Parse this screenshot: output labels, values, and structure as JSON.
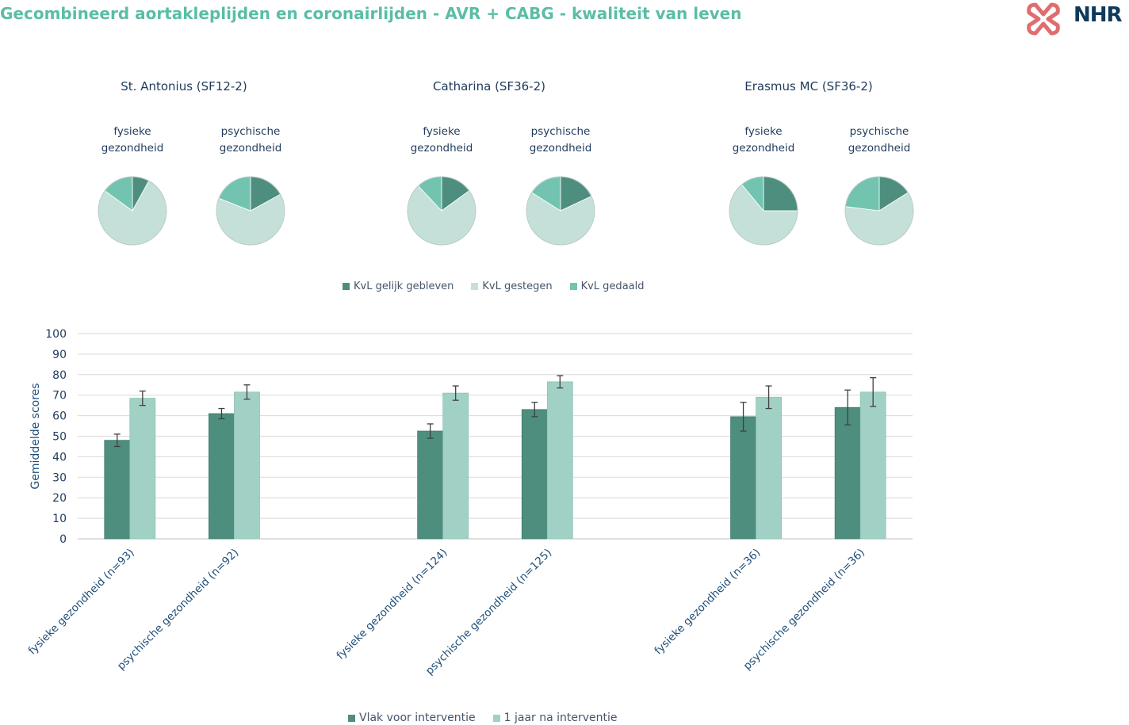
{
  "title": "Gecombineerd aortakleplijden en coronairlijden - AVR + CABG - kwaliteit van leven",
  "logo": {
    "text": "NHR"
  },
  "colors": {
    "dark": "#4e8e7f",
    "light": "#c5e0d8",
    "mid": "#72c4b0",
    "bar_dark": "#4e8e7f",
    "bar_light": "#a1d1c5",
    "title": "#5bbda6"
  },
  "pie_legend": [
    {
      "label": "KvL gelijk gebleven",
      "color": "#4e8e7f"
    },
    {
      "label": "KvL gestegen",
      "color": "#c5e0d8"
    },
    {
      "label": "KvL gedaald",
      "color": "#72c4b0"
    }
  ],
  "hospitals": [
    {
      "name": "St. Antonius (SF12-2)",
      "pies": [
        {
          "label_1": "fysieke",
          "label_2": "gezondheid",
          "slices": [
            8,
            77,
            15
          ]
        },
        {
          "label_1": "psychische",
          "label_2": "gezondheid",
          "slices": [
            17,
            64,
            19
          ]
        }
      ]
    },
    {
      "name": "Catharina (SF36-2)",
      "pies": [
        {
          "label_1": "fysieke",
          "label_2": "gezondheid",
          "slices": [
            15,
            73,
            12
          ]
        },
        {
          "label_1": "psychische",
          "label_2": "gezondheid",
          "slices": [
            18,
            66,
            16
          ]
        }
      ]
    },
    {
      "name": "Erasmus MC (SF36-2)",
      "pies": [
        {
          "label_1": "fysieke",
          "label_2": "gezondheid",
          "slices": [
            25,
            64,
            11
          ]
        },
        {
          "label_1": "psychische",
          "label_2": "gezondheid",
          "slices": [
            16,
            61,
            23
          ]
        }
      ]
    }
  ],
  "chart_data": {
    "type": "bar",
    "ylabel": "Gemiddelde scores",
    "ylim": [
      0,
      100
    ],
    "yticks": [
      0,
      10,
      20,
      30,
      40,
      50,
      60,
      70,
      80,
      90,
      100
    ],
    "grid": true,
    "categories": [
      "fysieke gezondheid (n=93)",
      "psychische gezondheid (n=92)",
      "",
      "fysieke gezondheid (n=124)",
      "psychische gezondheid (n=125)",
      "",
      "fysieke gezondheid (n=36)",
      "psychische gezondheid (n=36)"
    ],
    "series": [
      {
        "name": "Vlak voor interventie",
        "color": "#4e8e7f",
        "values": [
          48,
          61,
          null,
          52.5,
          63,
          null,
          59.5,
          64
        ],
        "errors": [
          3,
          2.5,
          null,
          3.5,
          3.5,
          null,
          7,
          8.5
        ]
      },
      {
        "name": "1 jaar na interventie",
        "color": "#a1d1c5",
        "values": [
          68.5,
          71.5,
          null,
          71,
          76.5,
          null,
          69,
          71.5
        ],
        "errors": [
          3.5,
          3.5,
          null,
          3.5,
          3,
          null,
          5.5,
          7
        ]
      }
    ],
    "legend_position": "bottom"
  }
}
